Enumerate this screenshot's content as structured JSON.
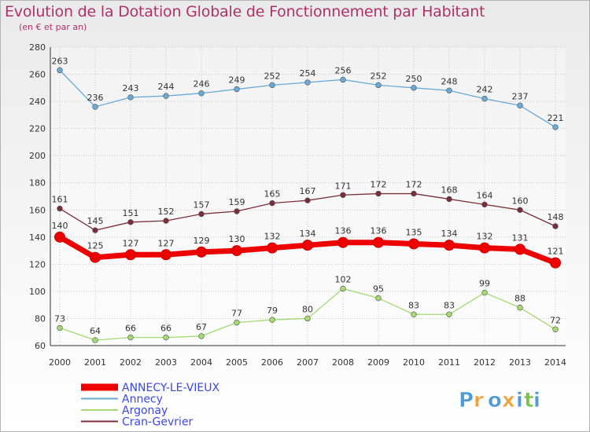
{
  "chart_data": {
    "type": "line",
    "title": "Evolution de la Dotation Globale de Fonctionnement par Habitant",
    "subtitle": "(en € et par an)",
    "x": [
      2000,
      2001,
      2002,
      2003,
      2004,
      2005,
      2006,
      2007,
      2008,
      2009,
      2010,
      2011,
      2012,
      2013,
      2014
    ],
    "ylim": [
      60,
      280
    ],
    "yticks": [
      60,
      80,
      100,
      120,
      140,
      160,
      180,
      200,
      220,
      240,
      260,
      280
    ],
    "grid": true,
    "legend_position": "bottom-left",
    "series": [
      {
        "name": "ANNECY-LE-VIEUX",
        "color": "#ee0000",
        "values": [
          140,
          125,
          127,
          127,
          129,
          130,
          132,
          134,
          136,
          136,
          135,
          134,
          132,
          131,
          121
        ]
      },
      {
        "name": "Annecy",
        "color": "#6aaad8",
        "values": [
          263,
          236,
          243,
          244,
          246,
          249,
          252,
          254,
          256,
          252,
          250,
          248,
          242,
          237,
          221
        ]
      },
      {
        "name": "Argonay",
        "color": "#a4da72",
        "values": [
          73,
          64,
          66,
          66,
          67,
          77,
          79,
          80,
          102,
          95,
          83,
          83,
          99,
          88,
          72
        ]
      },
      {
        "name": "Cran-Gevrier",
        "color": "#7a2e3a",
        "values": [
          161,
          145,
          151,
          152,
          157,
          159,
          165,
          167,
          171,
          172,
          172,
          168,
          164,
          160,
          148
        ]
      }
    ]
  },
  "logo": {
    "letters": [
      "P",
      "r",
      "o",
      "x",
      "i",
      "t",
      "i"
    ],
    "colors": [
      "#4e9bd8",
      "#f2a23a",
      "#4e9bd8",
      "#f2a23a",
      "#4e9bd8",
      "#7cc24a",
      "#4e9bd8"
    ]
  }
}
